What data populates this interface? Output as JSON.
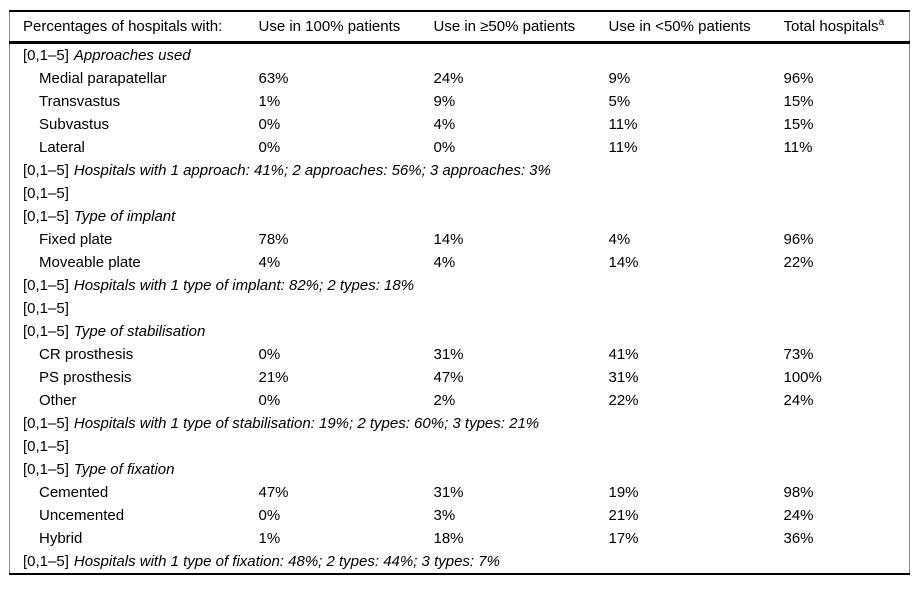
{
  "table": {
    "columns": [
      {
        "label": "Percentages of hospitals with:",
        "sup": ""
      },
      {
        "label": "Use in 100% patients",
        "sup": ""
      },
      {
        "label": "Use in ≥50% patients",
        "sup": ""
      },
      {
        "label": "Use in <50% patients",
        "sup": ""
      },
      {
        "label": "Total hospitals",
        "sup": "a"
      }
    ],
    "rows": [
      {
        "type": "section",
        "prefix": "[0,1–5]",
        "text": "Approaches used"
      },
      {
        "type": "data",
        "label": "Medial parapatellar",
        "values": [
          "63%",
          "24%",
          "9%",
          "96%"
        ]
      },
      {
        "type": "data",
        "label": "Transvastus",
        "values": [
          "1%",
          "9%",
          "5%",
          "15%"
        ]
      },
      {
        "type": "data",
        "label": "Subvastus",
        "values": [
          "0%",
          "4%",
          "11%",
          "15%"
        ]
      },
      {
        "type": "data",
        "label": "Lateral",
        "values": [
          "0%",
          "0%",
          "11%",
          "11%"
        ]
      },
      {
        "type": "note",
        "prefix": "[0,1–5]",
        "text": "Hospitals with 1 approach: 41%; 2 approaches: 56%; 3 approaches: 3%"
      },
      {
        "type": "empty",
        "prefix": "[0,1–5]",
        "text": ""
      },
      {
        "type": "section",
        "prefix": "[0,1–5]",
        "text": "Type of implant"
      },
      {
        "type": "data",
        "label": "Fixed plate",
        "values": [
          "78%",
          "14%",
          "4%",
          "96%"
        ]
      },
      {
        "type": "data",
        "label": "Moveable plate",
        "values": [
          "4%",
          "4%",
          "14%",
          "22%"
        ]
      },
      {
        "type": "note",
        "prefix": "[0,1–5]",
        "text": "Hospitals with 1 type of implant: 82%; 2 types: 18%"
      },
      {
        "type": "empty",
        "prefix": "[0,1–5]",
        "text": ""
      },
      {
        "type": "section",
        "prefix": "[0,1–5]",
        "text": "Type of stabilisation"
      },
      {
        "type": "data",
        "label": "CR prosthesis",
        "values": [
          "0%",
          "31%",
          "41%",
          "73%"
        ]
      },
      {
        "type": "data",
        "label": "PS prosthesis",
        "values": [
          "21%",
          "47%",
          "31%",
          "100%"
        ]
      },
      {
        "type": "data",
        "label": "Other",
        "values": [
          "0%",
          "2%",
          "22%",
          "24%"
        ]
      },
      {
        "type": "note",
        "prefix": "[0,1–5]",
        "text": "Hospitals with 1 type of stabilisation: 19%; 2 types: 60%; 3 types: 21%"
      },
      {
        "type": "empty",
        "prefix": "[0,1–5]",
        "text": ""
      },
      {
        "type": "section",
        "prefix": "[0,1–5]",
        "text": "Type of fixation"
      },
      {
        "type": "data",
        "label": "Cemented",
        "values": [
          "47%",
          "31%",
          "19%",
          "98%"
        ]
      },
      {
        "type": "data",
        "label": "Uncemented",
        "values": [
          "0%",
          "3%",
          "21%",
          "24%"
        ]
      },
      {
        "type": "data",
        "label": "Hybrid",
        "values": [
          "1%",
          "18%",
          "17%",
          "36%"
        ]
      },
      {
        "type": "note",
        "prefix": "[0,1–5]",
        "text": "Hospitals with 1 type of fixation: 48%; 2 types: 44%; 3 types: 7%"
      }
    ]
  }
}
